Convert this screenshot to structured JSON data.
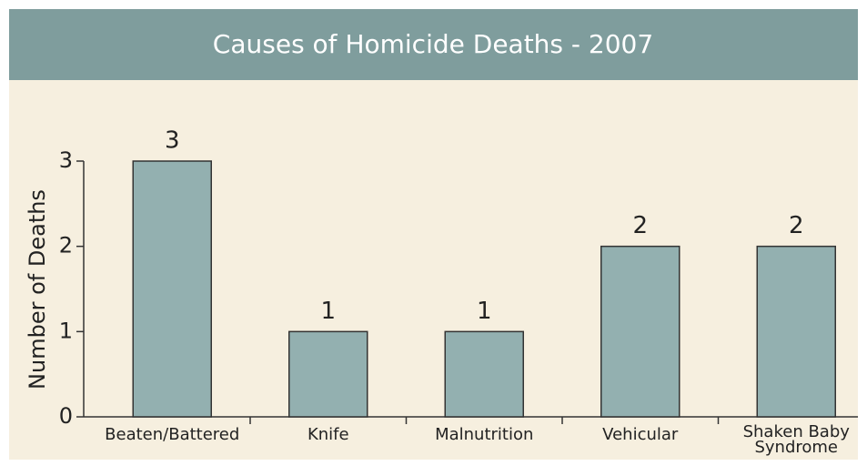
{
  "chart_data": {
    "type": "bar",
    "title": "Causes of Homicide Deaths - 2007",
    "y_label": "Number of Deaths",
    "categories": [
      "Beaten/Battered",
      "Knife",
      "Malnutrition",
      "Vehicular",
      "Shaken Baby\nSyndrome"
    ],
    "values": [
      3,
      1,
      1,
      2,
      2
    ],
    "color": "#93b0b0",
    "ylim": [
      0,
      3
    ],
    "yticks": [
      0,
      1,
      2,
      3
    ],
    "grid": false
  }
}
